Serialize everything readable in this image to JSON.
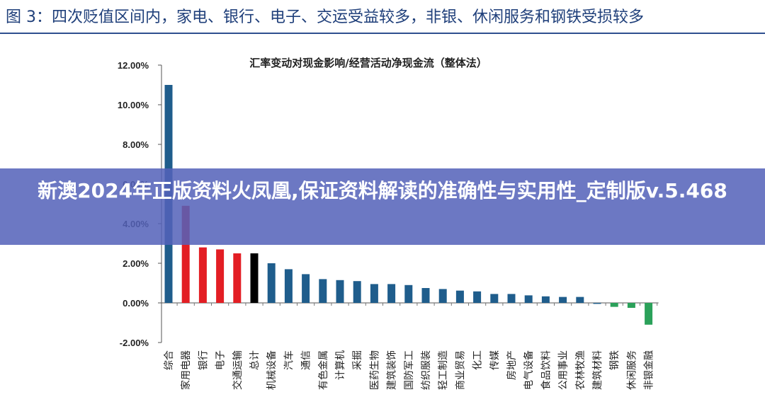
{
  "figure": {
    "caption": "图 3：四次贬值区间内，家电、银行、电子、交运受益较多，非银、休闲服务和钢铁受损较多"
  },
  "banner": {
    "text": "新澳2024年正版资料火凤凰,保证资料解读的准确性与实用性_定制版v.5.468"
  },
  "colors": {
    "header_text": "#1f3f7a",
    "header_rule": "#2e4f8f",
    "banner_bg": "#5462b9",
    "default_bar": "#1f5d8c",
    "highlight_positive": "#e31e24",
    "total_bar": "#000000",
    "highlight_negative": "#2ba15a"
  },
  "chart_data": {
    "type": "bar",
    "title": "汇率变动对现金影响/经营活动净现金流（整体法）",
    "categories": [
      "综合",
      "家用电器",
      "银行",
      "电子",
      "交通运输",
      "总计",
      "机械设备",
      "汽车",
      "通信",
      "有色金属",
      "计算机",
      "采掘",
      "医药生物",
      "建筑装饰",
      "国防军工",
      "纺织服装",
      "轻工制造",
      "商业贸易",
      "化工",
      "传媒",
      "房地产",
      "电气设备",
      "食品饮料",
      "公用事业",
      "农林牧渔",
      "建筑材料",
      "钢铁",
      "休闲服务",
      "非银金融"
    ],
    "values": [
      11.0,
      4.9,
      2.8,
      2.7,
      2.5,
      2.5,
      2.0,
      1.7,
      1.45,
      1.2,
      1.15,
      1.1,
      0.95,
      0.95,
      0.9,
      0.75,
      0.7,
      0.62,
      0.58,
      0.45,
      0.45,
      0.38,
      0.33,
      0.3,
      0.3,
      -0.05,
      -0.2,
      -0.25,
      -1.1
    ],
    "bar_colors": [
      "#1f5d8c",
      "#e31e24",
      "#e31e24",
      "#e31e24",
      "#e31e24",
      "#000000",
      "#1f5d8c",
      "#1f5d8c",
      "#1f5d8c",
      "#1f5d8c",
      "#1f5d8c",
      "#1f5d8c",
      "#1f5d8c",
      "#1f5d8c",
      "#1f5d8c",
      "#1f5d8c",
      "#1f5d8c",
      "#1f5d8c",
      "#1f5d8c",
      "#1f5d8c",
      "#1f5d8c",
      "#1f5d8c",
      "#1f5d8c",
      "#1f5d8c",
      "#1f5d8c",
      "#1f5d8c",
      "#2ba15a",
      "#2ba15a",
      "#2ba15a"
    ],
    "ylim": [
      -2.0,
      12.0
    ],
    "yticks": [
      -2.0,
      0.0,
      2.0,
      4.0,
      6.0,
      8.0,
      10.0,
      12.0
    ],
    "ytick_labels": [
      "-2.00%",
      "0.00%",
      "2.00%",
      "4.00%",
      "6.00%",
      "8.00%",
      "10.00%",
      "12.00%"
    ],
    "xlabel": "",
    "ylabel": "",
    "grid": false,
    "legend": "none"
  }
}
